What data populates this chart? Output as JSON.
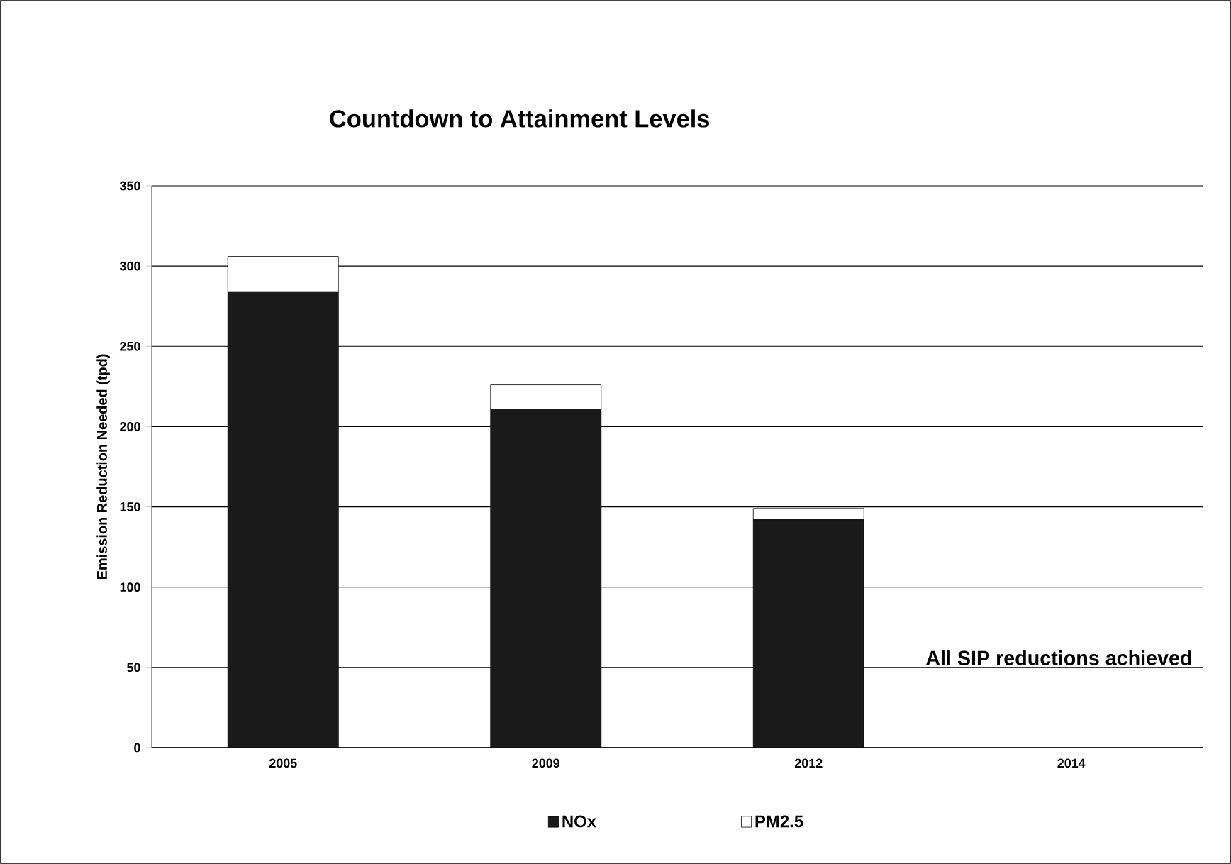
{
  "chart_data": {
    "type": "bar",
    "title": "Countdown to Attainment Levels",
    "ylabel": "Emission Reduction Needed (tpd)",
    "categories": [
      "2005",
      "2009",
      "2012",
      "2014"
    ],
    "series": [
      {
        "name": "NOx",
        "color": "#1a1a1a",
        "values": [
          284,
          211,
          142,
          0
        ]
      },
      {
        "name": "PM2.5",
        "color": "#ffffff",
        "values": [
          22,
          15,
          7,
          0
        ]
      }
    ],
    "stacked": true,
    "ylim": [
      0,
      350
    ],
    "yticks": [
      0,
      50,
      100,
      150,
      200,
      250,
      300,
      350
    ],
    "grid": "y",
    "legend": "bottom",
    "annotations": [
      "All SIP reductions achieved"
    ]
  }
}
